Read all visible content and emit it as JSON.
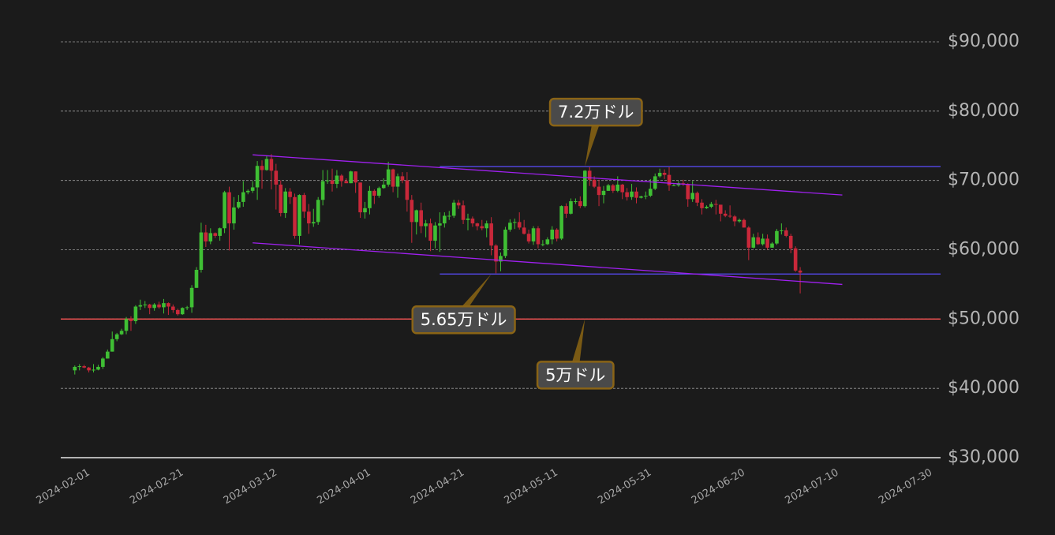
{
  "chart_data": {
    "type": "candlestick",
    "xlim": [
      "2024-01-29",
      "2024-08-04"
    ],
    "xticks": [
      "2024-02-01",
      "2024-02-21",
      "2024-03-12",
      "2024-04-01",
      "2024-04-21",
      "2024-05-11",
      "2024-05-31",
      "2024-06-20",
      "2024-07-10",
      "2024-07-30"
    ],
    "ylim": [
      30000,
      90000
    ],
    "yticks": [
      {
        "value": 30000,
        "label": "$30,000"
      },
      {
        "value": 40000,
        "label": "$40,000"
      },
      {
        "value": 50000,
        "label": "$50,000"
      },
      {
        "value": 60000,
        "label": "$60,000"
      },
      {
        "value": 70000,
        "label": "$70,000"
      },
      {
        "value": 80000,
        "label": "$80,000"
      },
      {
        "value": 90000,
        "label": "$90,000"
      }
    ],
    "grid": true,
    "up_color": "#3fbf34",
    "down_color": "#c9283a",
    "x": [
      "2024-02-01",
      "2024-02-02",
      "2024-02-03",
      "2024-02-04",
      "2024-02-05",
      "2024-02-06",
      "2024-02-07",
      "2024-02-08",
      "2024-02-09",
      "2024-02-10",
      "2024-02-11",
      "2024-02-12",
      "2024-02-13",
      "2024-02-14",
      "2024-02-15",
      "2024-02-16",
      "2024-02-17",
      "2024-02-18",
      "2024-02-19",
      "2024-02-20",
      "2024-02-21",
      "2024-02-22",
      "2024-02-23",
      "2024-02-24",
      "2024-02-25",
      "2024-02-26",
      "2024-02-27",
      "2024-02-28",
      "2024-02-29",
      "2024-03-01",
      "2024-03-02",
      "2024-03-03",
      "2024-03-04",
      "2024-03-05",
      "2024-03-06",
      "2024-03-07",
      "2024-03-08",
      "2024-03-09",
      "2024-03-10",
      "2024-03-11",
      "2024-03-12",
      "2024-03-13",
      "2024-03-14",
      "2024-03-15",
      "2024-03-16",
      "2024-03-17",
      "2024-03-18",
      "2024-03-19",
      "2024-03-20",
      "2024-03-21",
      "2024-03-22",
      "2024-03-23",
      "2024-03-24",
      "2024-03-25",
      "2024-03-26",
      "2024-03-27",
      "2024-03-28",
      "2024-03-29",
      "2024-03-30",
      "2024-03-31",
      "2024-04-01",
      "2024-04-02",
      "2024-04-03",
      "2024-04-04",
      "2024-04-05",
      "2024-04-06",
      "2024-04-07",
      "2024-04-08",
      "2024-04-09",
      "2024-04-10",
      "2024-04-11",
      "2024-04-12",
      "2024-04-13",
      "2024-04-14",
      "2024-04-15",
      "2024-04-16",
      "2024-04-17",
      "2024-04-18",
      "2024-04-19",
      "2024-04-20",
      "2024-04-21",
      "2024-04-22",
      "2024-04-23",
      "2024-04-24",
      "2024-04-25",
      "2024-04-26",
      "2024-04-27",
      "2024-04-28",
      "2024-04-29",
      "2024-04-30",
      "2024-05-01",
      "2024-05-02",
      "2024-05-03",
      "2024-05-04",
      "2024-05-05",
      "2024-05-06",
      "2024-05-07",
      "2024-05-08",
      "2024-05-09",
      "2024-05-10",
      "2024-05-11",
      "2024-05-12",
      "2024-05-13",
      "2024-05-14",
      "2024-05-15",
      "2024-05-16",
      "2024-05-17",
      "2024-05-18",
      "2024-05-19",
      "2024-05-20",
      "2024-05-21",
      "2024-05-22",
      "2024-05-23",
      "2024-05-24",
      "2024-05-25",
      "2024-05-26",
      "2024-05-27",
      "2024-05-28",
      "2024-05-29",
      "2024-05-30",
      "2024-05-31",
      "2024-06-01",
      "2024-06-02",
      "2024-06-03",
      "2024-06-04",
      "2024-06-05",
      "2024-06-06",
      "2024-06-07",
      "2024-06-08",
      "2024-06-09",
      "2024-06-10",
      "2024-06-11",
      "2024-06-12",
      "2024-06-13",
      "2024-06-14",
      "2024-06-15",
      "2024-06-16",
      "2024-06-17",
      "2024-06-18",
      "2024-06-19",
      "2024-06-20",
      "2024-06-21",
      "2024-06-22",
      "2024-06-23",
      "2024-06-24",
      "2024-06-25",
      "2024-06-26",
      "2024-06-27",
      "2024-06-28",
      "2024-06-29",
      "2024-06-30",
      "2024-07-01",
      "2024-07-02",
      "2024-07-03",
      "2024-07-04",
      "2024-07-05"
    ],
    "ohlc": [
      [
        42600,
        43300,
        42000,
        43100
      ],
      [
        43100,
        43500,
        42600,
        43200
      ],
      [
        43200,
        43400,
        42900,
        43000
      ],
      [
        43000,
        43100,
        42300,
        42600
      ],
      [
        42600,
        43500,
        42300,
        42700
      ],
      [
        42700,
        43400,
        42600,
        43100
      ],
      [
        43100,
        44500,
        42800,
        44300
      ],
      [
        44300,
        45600,
        44300,
        45300
      ],
      [
        45300,
        48200,
        45300,
        47100
      ],
      [
        47100,
        48000,
        46800,
        47800
      ],
      [
        47800,
        48600,
        47700,
        48300
      ],
      [
        48300,
        50300,
        47800,
        50000
      ],
      [
        50000,
        50400,
        48300,
        49700
      ],
      [
        49700,
        52000,
        49300,
        51800
      ],
      [
        51800,
        52800,
        51300,
        52000
      ],
      [
        52000,
        52600,
        51600,
        52100
      ],
      [
        52100,
        52200,
        50700,
        51600
      ],
      [
        51600,
        52300,
        51200,
        52100
      ],
      [
        52100,
        52500,
        51500,
        51700
      ],
      [
        51700,
        52900,
        50800,
        52300
      ],
      [
        52300,
        52400,
        50600,
        51800
      ],
      [
        51800,
        52100,
        50900,
        51300
      ],
      [
        51300,
        51500,
        50500,
        50700
      ],
      [
        50700,
        51700,
        50600,
        51600
      ],
      [
        51600,
        51900,
        51300,
        51700
      ],
      [
        51700,
        54900,
        50900,
        54500
      ],
      [
        54500,
        57500,
        54500,
        57100
      ],
      [
        57100,
        63900,
        56700,
        62500
      ],
      [
        62500,
        63600,
        60400,
        61200
      ],
      [
        61200,
        63100,
        60800,
        62400
      ],
      [
        62400,
        62500,
        61700,
        62000
      ],
      [
        62000,
        63200,
        61300,
        63100
      ],
      [
        63100,
        68500,
        62400,
        68300
      ],
      [
        68300,
        69100,
        59900,
        63800
      ],
      [
        63800,
        67600,
        62900,
        66100
      ],
      [
        66100,
        67900,
        65900,
        66900
      ],
      [
        66900,
        69900,
        66200,
        68300
      ],
      [
        68300,
        68700,
        68000,
        68500
      ],
      [
        68500,
        69900,
        68200,
        69000
      ],
      [
        69000,
        72800,
        67200,
        72100
      ],
      [
        72100,
        72900,
        68800,
        71500
      ],
      [
        71500,
        73600,
        71400,
        73100
      ],
      [
        73100,
        73800,
        68700,
        71400
      ],
      [
        71400,
        72400,
        65800,
        69400
      ],
      [
        69400,
        70000,
        64800,
        65300
      ],
      [
        65300,
        68900,
        64600,
        68400
      ],
      [
        68400,
        68900,
        66600,
        67600
      ],
      [
        67600,
        68100,
        61600,
        62000
      ],
      [
        62000,
        68000,
        60800,
        67900
      ],
      [
        67900,
        68200,
        64600,
        65500
      ],
      [
        65500,
        66600,
        62300,
        63800
      ],
      [
        63800,
        65900,
        63300,
        64000
      ],
      [
        64000,
        67600,
        63600,
        67200
      ],
      [
        67200,
        71500,
        66400,
        69900
      ],
      [
        69900,
        71500,
        69500,
        70000
      ],
      [
        70000,
        71700,
        68400,
        69500
      ],
      [
        69500,
        71500,
        68900,
        70700
      ],
      [
        70700,
        70900,
        69100,
        69900
      ],
      [
        69900,
        70300,
        69600,
        69600
      ],
      [
        69600,
        71400,
        69600,
        71300
      ],
      [
        71300,
        71300,
        68200,
        69700
      ],
      [
        69700,
        69700,
        64600,
        65400
      ],
      [
        65400,
        66900,
        64500,
        66000
      ],
      [
        66000,
        69200,
        65100,
        68500
      ],
      [
        68500,
        68700,
        66600,
        67800
      ],
      [
        67800,
        69100,
        67500,
        68900
      ],
      [
        68900,
        70300,
        68800,
        69400
      ],
      [
        69400,
        72700,
        69100,
        71600
      ],
      [
        71600,
        71700,
        68300,
        69100
      ],
      [
        69100,
        71000,
        67500,
        70600
      ],
      [
        70600,
        71200,
        69600,
        70000
      ],
      [
        70000,
        71200,
        65500,
        67200
      ],
      [
        67200,
        67900,
        61000,
        64000
      ],
      [
        64000,
        65800,
        62200,
        65700
      ],
      [
        65700,
        66800,
        62400,
        63400
      ],
      [
        63400,
        64300,
        61800,
        63800
      ],
      [
        63800,
        64500,
        59800,
        61300
      ],
      [
        61300,
        64000,
        60200,
        63500
      ],
      [
        63500,
        65400,
        59700,
        63800
      ],
      [
        63800,
        65400,
        63200,
        64900
      ],
      [
        64900,
        65600,
        64300,
        64900
      ],
      [
        64900,
        67200,
        64600,
        66800
      ],
      [
        66800,
        67200,
        65900,
        66400
      ],
      [
        66400,
        67100,
        63700,
        64300
      ],
      [
        64300,
        65200,
        62800,
        64500
      ],
      [
        64500,
        64800,
        63300,
        63800
      ],
      [
        63800,
        63900,
        62800,
        63400
      ],
      [
        63400,
        64300,
        62800,
        63100
      ],
      [
        63100,
        64200,
        61800,
        63800
      ],
      [
        63800,
        64700,
        59200,
        60600
      ],
      [
        60600,
        60800,
        56600,
        58300
      ],
      [
        58300,
        59600,
        56900,
        59100
      ],
      [
        59100,
        63300,
        58800,
        62900
      ],
      [
        62900,
        64400,
        62600,
        63900
      ],
      [
        63900,
        64500,
        63000,
        64000
      ],
      [
        64000,
        65400,
        62900,
        63200
      ],
      [
        63200,
        64300,
        62200,
        62300
      ],
      [
        62300,
        62900,
        60900,
        61200
      ],
      [
        61200,
        63400,
        60700,
        63100
      ],
      [
        63100,
        63400,
        60200,
        60800
      ],
      [
        60800,
        61400,
        60500,
        60800
      ],
      [
        60800,
        61800,
        60700,
        61500
      ],
      [
        61500,
        63400,
        60800,
        62900
      ],
      [
        62900,
        63100,
        61200,
        61600
      ],
      [
        61600,
        66400,
        61400,
        66300
      ],
      [
        66300,
        66700,
        64600,
        65200
      ],
      [
        65200,
        67400,
        65100,
        67000
      ],
      [
        67000,
        67400,
        66600,
        67000
      ],
      [
        67000,
        67700,
        66000,
        66300
      ],
      [
        66300,
        71500,
        66100,
        71400
      ],
      [
        71400,
        71900,
        69200,
        70100
      ],
      [
        70100,
        70600,
        68900,
        69100
      ],
      [
        69100,
        70100,
        66300,
        67900
      ],
      [
        67900,
        69200,
        66700,
        68500
      ],
      [
        68500,
        69500,
        68500,
        69300
      ],
      [
        69300,
        69500,
        68200,
        68500
      ],
      [
        68500,
        70600,
        68300,
        69400
      ],
      [
        69400,
        69500,
        67300,
        68300
      ],
      [
        68300,
        68900,
        67100,
        67600
      ],
      [
        67600,
        69500,
        67200,
        68400
      ],
      [
        68400,
        69000,
        66700,
        67500
      ],
      [
        67500,
        67800,
        67400,
        67700
      ],
      [
        67700,
        68400,
        67300,
        67800
      ],
      [
        67800,
        70200,
        67600,
        68800
      ],
      [
        68800,
        71000,
        68600,
        70600
      ],
      [
        70600,
        71700,
        70400,
        71100
      ],
      [
        71100,
        71600,
        70200,
        70800
      ],
      [
        70800,
        71900,
        68500,
        69300
      ],
      [
        69300,
        69500,
        69200,
        69300
      ],
      [
        69300,
        69900,
        69100,
        69600
      ],
      [
        69600,
        70100,
        69200,
        69500
      ],
      [
        69500,
        69600,
        66200,
        67300
      ],
      [
        67300,
        69900,
        66900,
        68200
      ],
      [
        68200,
        68400,
        66300,
        66800
      ],
      [
        66800,
        67300,
        65100,
        66000
      ],
      [
        66000,
        66400,
        65900,
        66200
      ],
      [
        66200,
        66900,
        66000,
        66600
      ],
      [
        66600,
        67200,
        65100,
        66500
      ],
      [
        66500,
        66500,
        64100,
        65200
      ],
      [
        65200,
        65700,
        64700,
        64900
      ],
      [
        64900,
        66400,
        64600,
        64800
      ],
      [
        64800,
        65000,
        63400,
        64100
      ],
      [
        64100,
        64500,
        63900,
        64300
      ],
      [
        64300,
        64500,
        63200,
        63200
      ],
      [
        63200,
        63400,
        58500,
        60300
      ],
      [
        60300,
        62300,
        60200,
        61800
      ],
      [
        61800,
        62500,
        60700,
        60800
      ],
      [
        60800,
        62300,
        60600,
        61600
      ],
      [
        61600,
        62200,
        60000,
        60300
      ],
      [
        60300,
        61100,
        60300,
        60900
      ],
      [
        60900,
        63000,
        60700,
        62700
      ],
      [
        62700,
        63800,
        62200,
        62800
      ],
      [
        62800,
        63200,
        61800,
        62000
      ],
      [
        62000,
        62300,
        59500,
        60200
      ],
      [
        60200,
        60500,
        56800,
        57000
      ],
      [
        57000,
        57500,
        53700,
        56700
      ]
    ],
    "hlines": [
      {
        "value": 72000,
        "color": "#5b4dff",
        "start": "2024-04-19"
      },
      {
        "value": 56500,
        "color": "#5b4dff",
        "start": "2024-04-19"
      },
      {
        "value": 50000,
        "color": "#ff5555"
      }
    ],
    "trendlines": [
      {
        "x": [
          "2024-03-10",
          "2024-07-14"
        ],
        "y": [
          73700,
          67900
        ],
        "color": "#a020f0"
      },
      {
        "x": [
          "2024-03-10",
          "2024-07-14"
        ],
        "y": [
          61000,
          55000
        ],
        "color": "#a020f0"
      }
    ],
    "annotations": [
      {
        "text": "7.2万ドル",
        "x": "2024-05-20",
        "y": 72000
      },
      {
        "text": "5.65万ドル",
        "x": "2024-04-30",
        "y": 56500
      },
      {
        "text": "5万ドル",
        "x": "2024-05-20",
        "y": 50000
      }
    ]
  }
}
